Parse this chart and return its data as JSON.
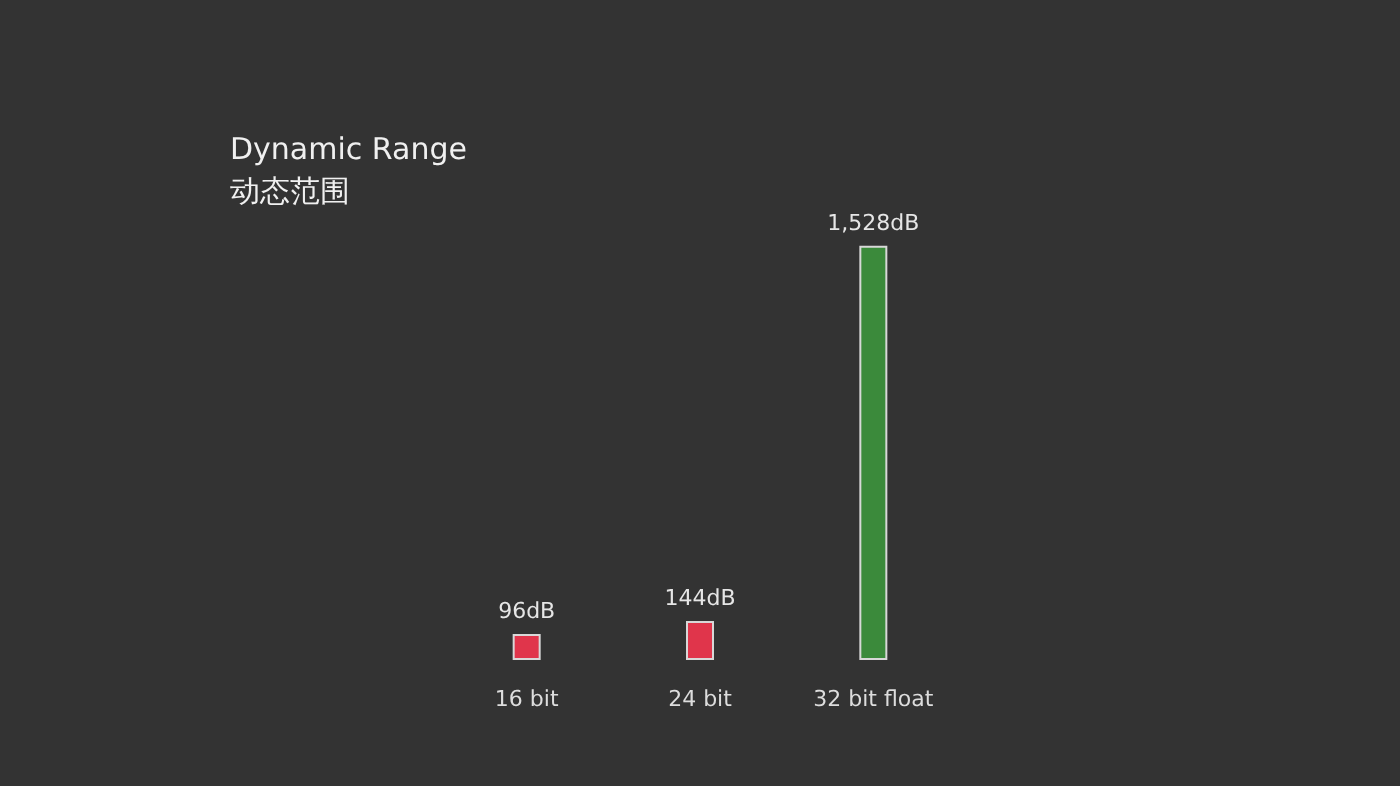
{
  "chart_data": {
    "type": "bar",
    "title": "Dynamic Range",
    "subtitle": "动态范围",
    "categories": [
      "16 bit",
      "24 bit",
      "32 bit float"
    ],
    "values": [
      96,
      144,
      1528
    ],
    "colors": [
      "#e0354b",
      "#e0354b",
      "#3b8a3b"
    ],
    "value_labels": [
      "96dB",
      "144dB",
      "1,528dB"
    ]
  }
}
